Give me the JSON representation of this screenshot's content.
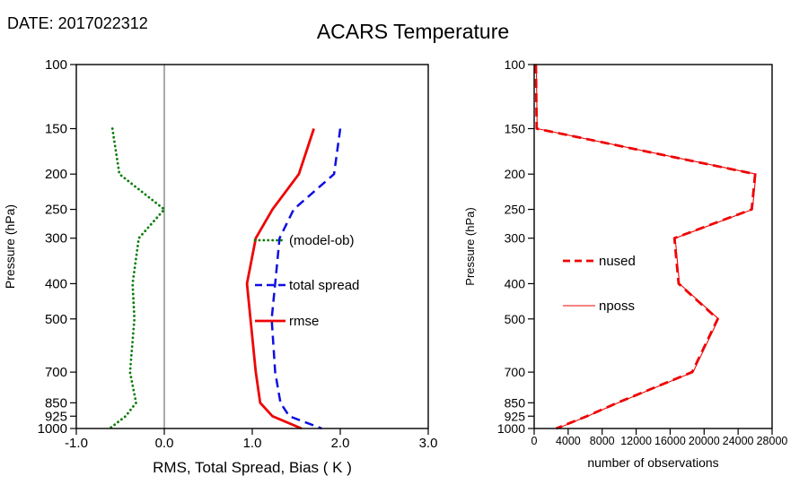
{
  "page": {
    "date_label": "DATE: 2017022312",
    "title": "ACARS Temperature"
  },
  "chart_data": [
    {
      "type": "line",
      "panel": "left",
      "xlabel": "RMS, Total Spread, Bias ( K )",
      "ylabel": "Pressure (hPa)",
      "xlim": [
        -1.0,
        3.0
      ],
      "xticks": [
        -1.0,
        0.0,
        1.0,
        2.0,
        3.0
      ],
      "xtick_labels": [
        "-1.0",
        "0.0",
        "1.0",
        "2.0",
        "3.0"
      ],
      "yscale": "log",
      "y_direction": "increasing-downward",
      "ylim": [
        100,
        1000
      ],
      "yticks": [
        100,
        150,
        200,
        250,
        300,
        400,
        500,
        700,
        850,
        925,
        1000
      ],
      "refline_x": 0.0,
      "grid": false,
      "legend_position": "inside-middle-right",
      "pressure_levels": [
        150,
        200,
        250,
        300,
        400,
        500,
        700,
        850,
        925,
        1000
      ],
      "series": [
        {
          "name": "(model-ob)",
          "color": "#0b7d0b",
          "style": "dotted",
          "values": [
            -0.59,
            -0.51,
            0.0,
            -0.29,
            -0.36,
            -0.34,
            -0.39,
            -0.32,
            -0.44,
            -0.62
          ]
        },
        {
          "name": "total spread",
          "color": "#0f0fe0",
          "style": "dashed",
          "values": [
            2.0,
            1.93,
            1.47,
            1.31,
            1.26,
            1.22,
            1.26,
            1.32,
            1.42,
            1.79
          ]
        },
        {
          "name": "rmse",
          "color": "#ee0505",
          "style": "solid",
          "values": [
            1.7,
            1.53,
            1.23,
            1.04,
            0.94,
            0.98,
            1.04,
            1.09,
            1.23,
            1.56
          ]
        }
      ]
    },
    {
      "type": "line",
      "panel": "right",
      "xlabel": "number of observations",
      "ylabel": "Pressure (hPa)",
      "xlim": [
        0,
        28000
      ],
      "xticks": [
        0,
        4000,
        8000,
        12000,
        16000,
        20000,
        24000,
        28000
      ],
      "xtick_labels": [
        "0",
        "4000",
        "8000",
        "12000",
        "16000",
        "20000",
        "24000",
        "28000"
      ],
      "yscale": "log",
      "y_direction": "increasing-downward",
      "ylim": [
        100,
        1000
      ],
      "yticks": [
        100,
        150,
        200,
        250,
        300,
        400,
        500,
        700,
        850,
        925,
        1000
      ],
      "refline_x": null,
      "grid": false,
      "legend_position": "inside-middle-left",
      "pressure_levels": [
        100,
        150,
        200,
        250,
        300,
        400,
        500,
        700,
        850,
        925,
        1000
      ],
      "series": [
        {
          "name": "nused",
          "color": "#ee0505",
          "style": "dashed-thick",
          "values": [
            200,
            300,
            26000,
            25600,
            16500,
            17000,
            21600,
            18600,
            9800,
            6200,
            2600
          ]
        },
        {
          "name": "nposs",
          "color": "#ee0505",
          "style": "solid-thin",
          "values": [
            250,
            350,
            26100,
            25700,
            16600,
            17100,
            21700,
            18700,
            9900,
            6300,
            2700
          ]
        }
      ]
    }
  ]
}
